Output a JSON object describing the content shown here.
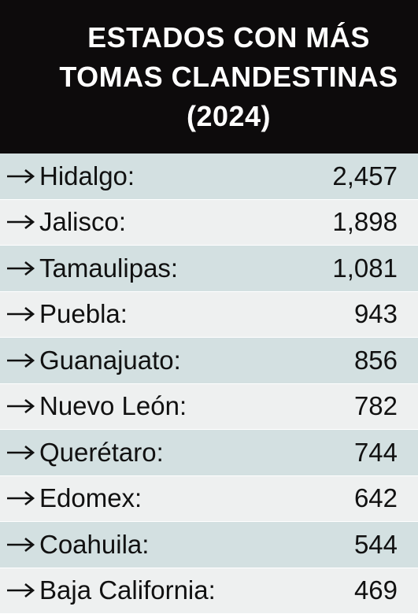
{
  "header": {
    "title_lines": [
      "ESTADOS CON MÁS",
      "TOMAS CLANDESTINAS",
      "(2024)"
    ]
  },
  "table": {
    "rows": [
      [
        "Hidalgo:",
        "2,457"
      ],
      [
        "Jalisco:",
        "1,898"
      ],
      [
        "Tamaulipas:",
        "1,081"
      ],
      [
        "Puebla:",
        "943"
      ],
      [
        "Guanajuato:",
        "856"
      ],
      [
        "Nuevo León:",
        "782"
      ],
      [
        "Querétaro:",
        "744"
      ],
      [
        "Edomex:",
        "642"
      ],
      [
        "Coahuila:",
        "544"
      ],
      [
        "Baja California:",
        "469"
      ]
    ]
  }
}
